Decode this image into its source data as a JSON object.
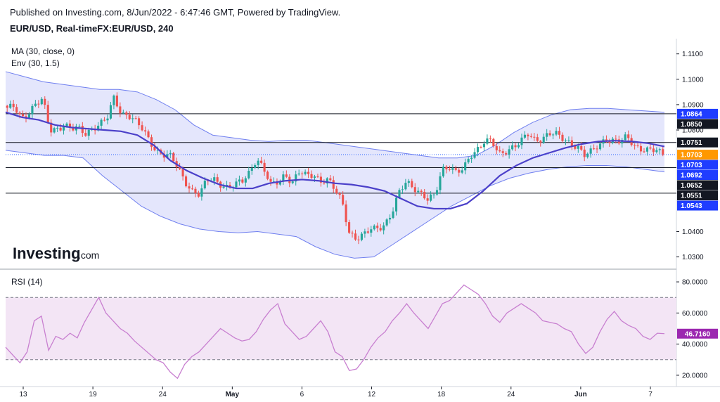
{
  "header": {
    "published": "Published on Investing.com, 8/Jun/2022 - 6:47:46 GMT, Powered by TradingView.",
    "symbol": "EUR/USD, Real-timeFX:EUR/USD, 240"
  },
  "indicators": {
    "ma": "MA (30, close, 0)",
    "env": "Env (30, 1.5)",
    "rsi": "RSI (14)"
  },
  "logo": {
    "brand": "Investing",
    "suffix": ".com"
  },
  "colors": {
    "up": "#26a69a",
    "down": "#ef5350",
    "ma": "#4b40c9",
    "env_band": "#6f7fef",
    "env_fill": "#dfe2fb",
    "rsi_line": "#c87fd0",
    "rsi_fill": "#f3e5f5",
    "blue_label": "#1f3dff",
    "orange_label": "#ff9800",
    "rsi_label": "#9c27b0"
  },
  "chart_data": {
    "type": "candlestick",
    "price_axis": {
      "ticks": [
        "1.1100",
        "1.1000",
        "1.0900",
        "1.0800",
        "1.0400",
        "1.0300"
      ],
      "range": [
        1.026,
        1.116
      ]
    },
    "x_ticks": [
      {
        "label": "13",
        "bold": false
      },
      {
        "label": "19",
        "bold": false
      },
      {
        "label": "24",
        "bold": false
      },
      {
        "label": "May",
        "bold": true
      },
      {
        "label": "6",
        "bold": false
      },
      {
        "label": "12",
        "bold": false
      },
      {
        "label": "18",
        "bold": false
      },
      {
        "label": "24",
        "bold": false
      },
      {
        "label": "Jun",
        "bold": true
      },
      {
        "label": "7",
        "bold": false
      }
    ],
    "horizontal_levels": [
      1.0864,
      1.0751,
      1.0652,
      1.0551
    ],
    "price_labels": [
      {
        "value": 1.0864,
        "text": "1.0864",
        "style": "blue"
      },
      {
        "value": 1.085,
        "text": "1.0850",
        "style": "black"
      },
      {
        "value": 1.0751,
        "text": "1.0751",
        "style": "black"
      },
      {
        "value": 1.0703,
        "text": "1.0703",
        "style": "orange"
      },
      {
        "value": 1.0703,
        "text": "1.0703",
        "style": "blue"
      },
      {
        "value": 1.0692,
        "text": "1.0692",
        "style": "blue"
      },
      {
        "value": 1.0652,
        "text": "1.0652",
        "style": "black"
      },
      {
        "value": 1.0551,
        "text": "1.0551",
        "style": "black"
      },
      {
        "value": 1.0543,
        "text": "1.0543",
        "style": "blue"
      }
    ],
    "current_price": 1.0703,
    "price_path": [
      1.088,
      1.089,
      1.085,
      1.087,
      1.09,
      1.0915,
      1.08,
      1.081,
      1.082,
      1.08,
      1.0805,
      1.079,
      1.081,
      1.082,
      1.084,
      1.093,
      1.087,
      1.086,
      1.083,
      1.08,
      1.076,
      1.072,
      1.07,
      1.069,
      1.065,
      1.06,
      1.056,
      1.054,
      1.06,
      1.061,
      1.059,
      1.057,
      1.058,
      1.06,
      1.064,
      1.069,
      1.064,
      1.058,
      1.06,
      1.063,
      1.059,
      1.063,
      1.062,
      1.063,
      1.06,
      1.06,
      1.056,
      1.052,
      1.04,
      1.037,
      1.038,
      1.041,
      1.042,
      1.043,
      1.047,
      1.055,
      1.06,
      1.058,
      1.055,
      1.052,
      1.054,
      1.065,
      1.066,
      1.063,
      1.064,
      1.07,
      1.073,
      1.076,
      1.075,
      1.07,
      1.072,
      1.074,
      1.075,
      1.078,
      1.076,
      1.077,
      1.079,
      1.078,
      1.076,
      1.075,
      1.074,
      1.07,
      1.071,
      1.074,
      1.077,
      1.076,
      1.075,
      1.077,
      1.074,
      1.073,
      1.072,
      1.0715,
      1.0703
    ],
    "ma_path": [
      1.087,
      1.085,
      1.084,
      1.082,
      1.081,
      1.0805,
      1.08,
      1.0795,
      1.078,
      1.074,
      1.068,
      1.064,
      1.061,
      1.0585,
      1.057,
      1.057,
      1.059,
      1.06,
      1.0605,
      1.06,
      1.059,
      1.0585,
      1.0575,
      1.056,
      1.053,
      1.05,
      1.049,
      1.049,
      1.051,
      1.056,
      1.062,
      1.066,
      1.069,
      1.071,
      1.073,
      1.0745,
      1.0755,
      1.0758,
      1.0755,
      1.0748,
      1.0735
    ],
    "env_upper": [
      1.103,
      1.101,
      1.099,
      1.098,
      1.097,
      1.096,
      1.096,
      1.095,
      1.092,
      1.088,
      1.082,
      1.078,
      1.077,
      1.076,
      1.0755,
      1.076,
      1.076,
      1.075,
      1.074,
      1.073,
      1.072,
      1.071,
      1.07,
      1.069,
      1.069,
      1.07,
      1.074,
      1.079,
      1.083,
      1.086,
      1.088,
      1.0885,
      1.0885,
      1.088,
      1.0875,
      1.087
    ],
    "env_lower": [
      1.072,
      1.071,
      1.07,
      1.07,
      1.069,
      1.062,
      1.056,
      1.05,
      1.046,
      1.043,
      1.041,
      1.04,
      1.0395,
      1.04,
      1.039,
      1.038,
      1.034,
      1.031,
      1.0295,
      1.03,
      1.035,
      1.04,
      1.045,
      1.05,
      1.054,
      1.058,
      1.061,
      1.063,
      1.0645,
      1.0655,
      1.066,
      1.066,
      1.0655,
      1.0645,
      1.0635
    ],
    "rsi": {
      "axis_ticks": [
        "80.0000",
        "60.0000",
        "40.0000",
        "20.0000"
      ],
      "range": [
        15,
        85
      ],
      "overbought": 70,
      "oversold": 30,
      "current": "46.7160",
      "values": [
        38,
        33,
        28,
        35,
        55,
        58,
        36,
        45,
        43,
        47,
        44,
        54,
        62,
        70,
        60,
        55,
        50,
        47,
        42,
        38,
        34,
        30,
        28,
        22,
        18,
        27,
        32,
        35,
        40,
        45,
        50,
        47,
        44,
        42,
        43,
        48,
        56,
        62,
        66,
        53,
        48,
        43,
        45,
        50,
        55,
        48,
        35,
        32,
        23,
        24,
        30,
        38,
        44,
        48,
        55,
        60,
        66,
        60,
        55,
        50,
        58,
        66,
        68,
        73,
        78,
        75,
        72,
        66,
        58,
        54,
        60,
        63,
        66,
        63,
        60,
        55,
        54,
        53,
        50,
        48,
        40,
        34,
        38,
        48,
        56,
        61,
        55,
        52,
        50,
        45,
        43,
        47,
        46.716
      ]
    }
  }
}
